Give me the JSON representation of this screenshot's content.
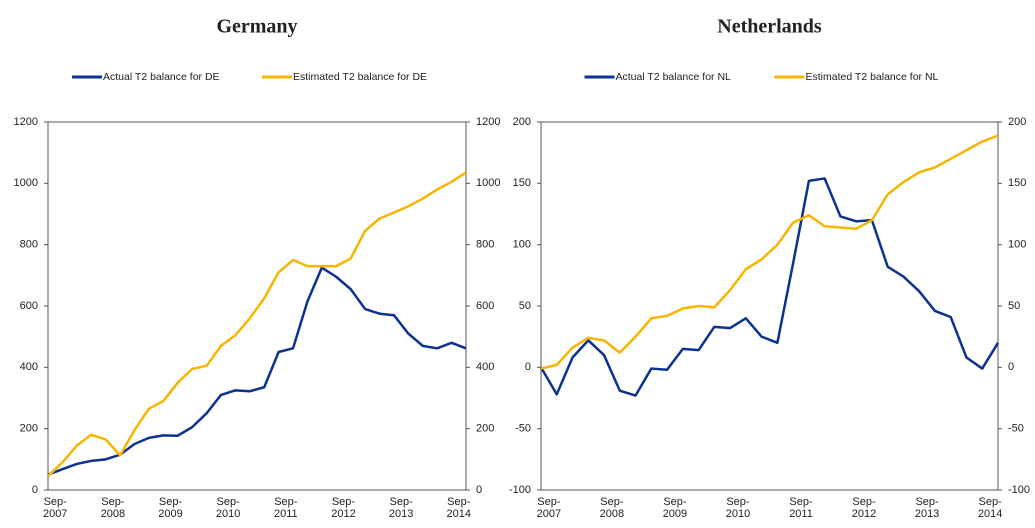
{
  "chart_data": [
    {
      "type": "line",
      "title": "Germany",
      "categories": [
        "Sep-2007",
        null,
        null,
        null,
        "Sep-2008",
        null,
        null,
        null,
        "Sep-2009",
        null,
        null,
        null,
        "Sep-2010",
        null,
        null,
        null,
        "Sep-2011",
        null,
        null,
        null,
        "Sep-2012",
        null,
        null,
        null,
        "Sep-2013",
        null,
        null,
        null,
        "Sep-2014",
        null
      ],
      "series": [
        {
          "name": "Actual T2 balance for DE",
          "color": "#0b3290",
          "values": [
            50,
            68,
            85,
            95,
            100,
            115,
            150,
            170,
            178,
            177,
            205,
            250,
            310,
            325,
            322,
            335,
            450,
            462,
            615,
            725,
            695,
            655,
            590,
            575,
            570,
            510,
            470,
            462,
            480,
            462
          ]
        },
        {
          "name": "Estimated T2 balance for DE",
          "color": "#f7b500",
          "values": [
            45,
            90,
            145,
            180,
            165,
            113,
            195,
            265,
            290,
            350,
            395,
            405,
            470,
            505,
            560,
            625,
            710,
            750,
            730,
            730,
            730,
            755,
            845,
            885,
            905,
            925,
            950,
            980,
            1005,
            1035
          ]
        }
      ],
      "ylim": [
        0,
        1200
      ],
      "yticks": [
        0,
        200,
        400,
        600,
        800,
        1000,
        1200
      ]
    },
    {
      "type": "line",
      "title": "Netherlands",
      "categories": [
        "Sep-2007",
        null,
        null,
        null,
        "Sep-2008",
        null,
        null,
        null,
        "Sep-2009",
        null,
        null,
        null,
        "Sep-2010",
        null,
        null,
        null,
        "Sep-2011",
        null,
        null,
        null,
        "Sep-2012",
        null,
        null,
        null,
        "Sep-2013",
        null,
        null,
        null,
        "Sep-2014",
        null
      ],
      "series": [
        {
          "name": "Actual T2 balance for NL",
          "color": "#0b3290",
          "values": [
            0,
            -22,
            8,
            22,
            10,
            -19,
            -23,
            -1,
            -2,
            15,
            14,
            33,
            32,
            40,
            25,
            20,
            85,
            152,
            154,
            123,
            119,
            120,
            82,
            74,
            62,
            46,
            41,
            8,
            -1,
            20
          ]
        },
        {
          "name": "Estimated T2 balance for NL",
          "color": "#f7b500",
          "values": [
            -1,
            2,
            16,
            24,
            22,
            12,
            25,
            40,
            42,
            48,
            50,
            49,
            63,
            80,
            88,
            100,
            118,
            124,
            115,
            114,
            113,
            120,
            141,
            151,
            159,
            163,
            170,
            177,
            184,
            189
          ]
        }
      ],
      "ylim": [
        -100,
        200
      ],
      "yticks": [
        -100,
        -50,
        0,
        50,
        100,
        150,
        200
      ]
    }
  ]
}
